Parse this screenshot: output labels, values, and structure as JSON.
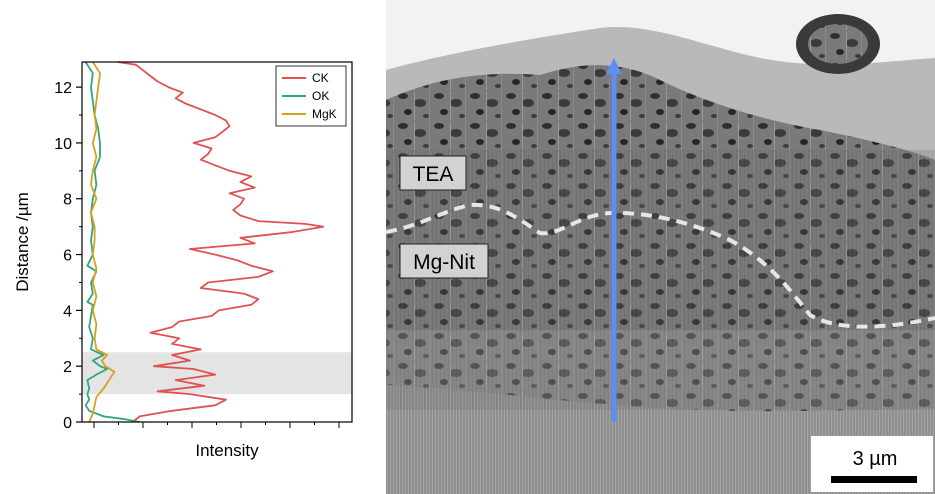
{
  "chart_data": {
    "type": "line",
    "orientation": "vertical-profile",
    "ylabel": "Distance /µm",
    "xlabel": "Intensity",
    "ylim": [
      0,
      12.9
    ],
    "y_ticks": [
      "0",
      "2",
      "4",
      "6",
      "8",
      "10",
      "12"
    ],
    "x_tick_labels_shown": false,
    "legend_position": "top-right",
    "highlight_band": {
      "y_from": 1.0,
      "y_to": 2.5,
      "color": "#d9d9d9"
    },
    "series": [
      {
        "name": "CK",
        "color": "#e05252",
        "points": [
          [
            0.0,
            0.14
          ],
          [
            0.2,
            0.16
          ],
          [
            0.4,
            0.25
          ],
          [
            0.6,
            0.37
          ],
          [
            0.8,
            0.4
          ],
          [
            1.0,
            0.3
          ],
          [
            1.1,
            0.21
          ],
          [
            1.3,
            0.34
          ],
          [
            1.5,
            0.26
          ],
          [
            1.7,
            0.37
          ],
          [
            1.9,
            0.31
          ],
          [
            2.0,
            0.2
          ],
          [
            2.2,
            0.3
          ],
          [
            2.4,
            0.25
          ],
          [
            2.6,
            0.33
          ],
          [
            2.8,
            0.25
          ],
          [
            3.0,
            0.27
          ],
          [
            3.2,
            0.19
          ],
          [
            3.4,
            0.25
          ],
          [
            3.6,
            0.27
          ],
          [
            3.8,
            0.36
          ],
          [
            4.0,
            0.38
          ],
          [
            4.2,
            0.47
          ],
          [
            4.4,
            0.49
          ],
          [
            4.6,
            0.45
          ],
          [
            4.8,
            0.33
          ],
          [
            5.0,
            0.35
          ],
          [
            5.2,
            0.49
          ],
          [
            5.4,
            0.53
          ],
          [
            5.6,
            0.47
          ],
          [
            5.8,
            0.43
          ],
          [
            6.0,
            0.37
          ],
          [
            6.2,
            0.3
          ],
          [
            6.4,
            0.48
          ],
          [
            6.6,
            0.44
          ],
          [
            6.8,
            0.58
          ],
          [
            7.0,
            0.67
          ],
          [
            7.1,
            0.62
          ],
          [
            7.2,
            0.49
          ],
          [
            7.4,
            0.44
          ],
          [
            7.6,
            0.42
          ],
          [
            7.8,
            0.44
          ],
          [
            8.0,
            0.45
          ],
          [
            8.2,
            0.41
          ],
          [
            8.4,
            0.48
          ],
          [
            8.6,
            0.44
          ],
          [
            8.8,
            0.47
          ],
          [
            9.0,
            0.41
          ],
          [
            9.2,
            0.37
          ],
          [
            9.4,
            0.33
          ],
          [
            9.6,
            0.35
          ],
          [
            9.8,
            0.36
          ],
          [
            10.0,
            0.31
          ],
          [
            10.2,
            0.37
          ],
          [
            10.4,
            0.39
          ],
          [
            10.6,
            0.41
          ],
          [
            10.8,
            0.4
          ],
          [
            11.0,
            0.37
          ],
          [
            11.2,
            0.33
          ],
          [
            11.4,
            0.29
          ],
          [
            11.6,
            0.26
          ],
          [
            11.8,
            0.28
          ],
          [
            12.0,
            0.24
          ],
          [
            12.2,
            0.21
          ],
          [
            12.4,
            0.19
          ],
          [
            12.6,
            0.17
          ],
          [
            12.8,
            0.15
          ],
          [
            12.9,
            0.1
          ]
        ]
      },
      {
        "name": "OK",
        "color": "#2ea87a",
        "points": [
          [
            0.0,
            0.16
          ],
          [
            0.1,
            0.12
          ],
          [
            0.2,
            0.06
          ],
          [
            0.4,
            0.02
          ],
          [
            0.6,
            0.01
          ],
          [
            0.8,
            0.02
          ],
          [
            1.0,
            0.015
          ],
          [
            1.2,
            0.02
          ],
          [
            1.5,
            0.015
          ],
          [
            1.7,
            0.04
          ],
          [
            1.9,
            0.07
          ],
          [
            2.0,
            0.05
          ],
          [
            2.2,
            0.03
          ],
          [
            2.4,
            0.06
          ],
          [
            2.6,
            0.025
          ],
          [
            3.0,
            0.03
          ],
          [
            3.4,
            0.02
          ],
          [
            3.8,
            0.025
          ],
          [
            4.2,
            0.03
          ],
          [
            4.3,
            0.015
          ],
          [
            4.6,
            0.03
          ],
          [
            5.0,
            0.025
          ],
          [
            5.4,
            0.04
          ],
          [
            5.6,
            0.015
          ],
          [
            6.0,
            0.03
          ],
          [
            6.5,
            0.025
          ],
          [
            7.0,
            0.03
          ],
          [
            7.5,
            0.025
          ],
          [
            8.0,
            0.03
          ],
          [
            8.5,
            0.04
          ],
          [
            9.0,
            0.035
          ],
          [
            9.5,
            0.05
          ],
          [
            10.0,
            0.05
          ],
          [
            10.5,
            0.045
          ],
          [
            11.0,
            0.035
          ],
          [
            11.5,
            0.03
          ],
          [
            12.0,
            0.025
          ],
          [
            12.5,
            0.03
          ],
          [
            12.9,
            0.01
          ]
        ]
      },
      {
        "name": "MgK",
        "color": "#d9a021",
        "points": [
          [
            0.0,
            0.02
          ],
          [
            0.3,
            0.03
          ],
          [
            0.6,
            0.035
          ],
          [
            0.9,
            0.04
          ],
          [
            1.2,
            0.06
          ],
          [
            1.5,
            0.075
          ],
          [
            1.8,
            0.09
          ],
          [
            2.0,
            0.065
          ],
          [
            2.2,
            0.055
          ],
          [
            2.4,
            0.07
          ],
          [
            2.6,
            0.04
          ],
          [
            3.0,
            0.035
          ],
          [
            3.5,
            0.04
          ],
          [
            4.0,
            0.03
          ],
          [
            4.5,
            0.04
          ],
          [
            5.0,
            0.03
          ],
          [
            5.5,
            0.04
          ],
          [
            6.0,
            0.03
          ],
          [
            6.5,
            0.035
          ],
          [
            7.0,
            0.035
          ],
          [
            7.5,
            0.025
          ],
          [
            8.0,
            0.04
          ],
          [
            8.5,
            0.025
          ],
          [
            9.0,
            0.03
          ],
          [
            9.5,
            0.04
          ],
          [
            10.0,
            0.03
          ],
          [
            10.5,
            0.04
          ],
          [
            11.0,
            0.035
          ],
          [
            11.5,
            0.04
          ],
          [
            12.0,
            0.045
          ],
          [
            12.5,
            0.05
          ],
          [
            12.9,
            0.03
          ]
        ]
      }
    ]
  },
  "micrograph": {
    "layer_label_top": "TEA",
    "layer_label_bottom": "Mg-Nit",
    "scale_bar_label": "3 µm",
    "arrow_color": "#5b8ff0",
    "boundary_color": "#e6e6e6"
  }
}
